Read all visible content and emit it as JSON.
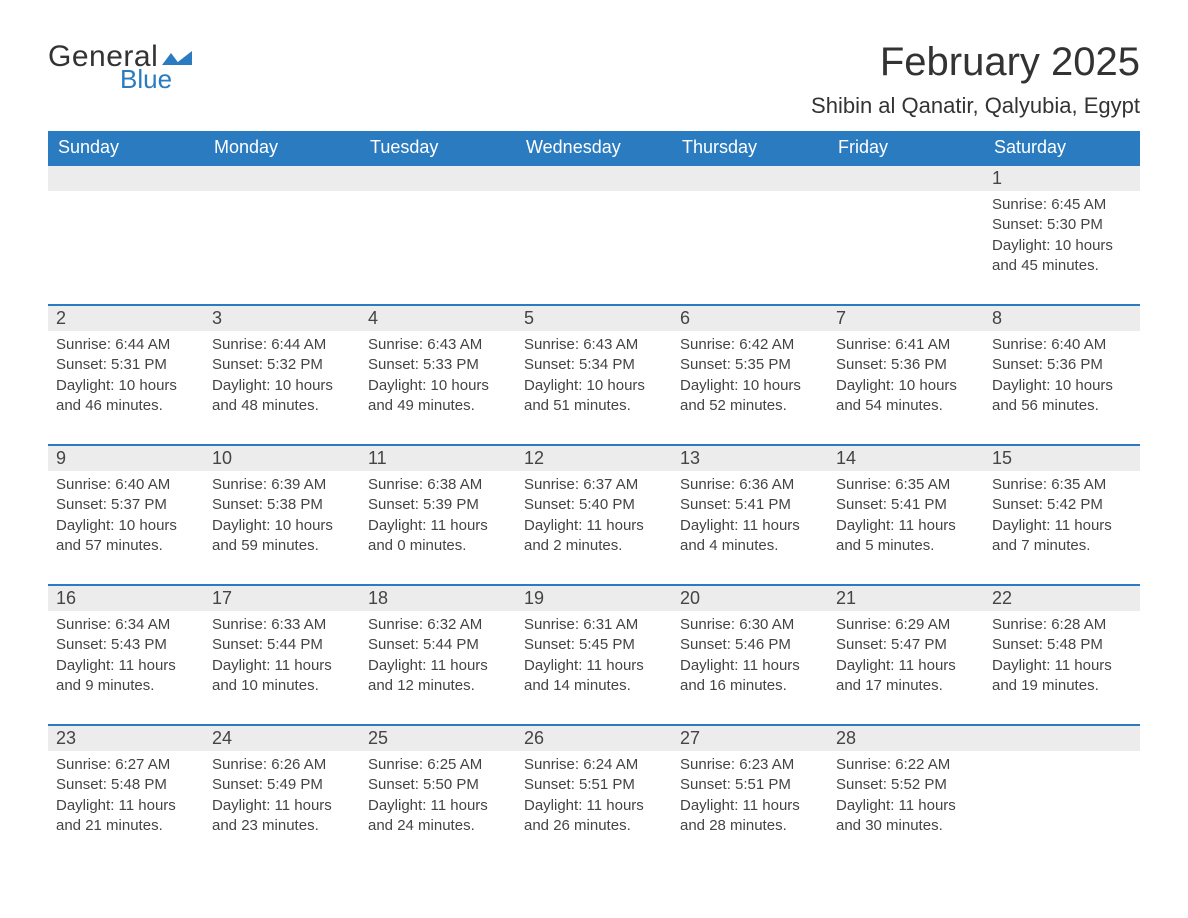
{
  "logo": {
    "text_general": "General",
    "text_blue": "Blue"
  },
  "title": "February 2025",
  "location": "Shibin al Qanatir, Qalyubia, Egypt",
  "colors": {
    "header_bg": "#2a7bbf",
    "header_text": "#ffffff",
    "row_stripe": "#ececec",
    "border_accent": "#2a7bbf",
    "text": "#444444",
    "background": "#ffffff"
  },
  "weekdays": [
    "Sunday",
    "Monday",
    "Tuesday",
    "Wednesday",
    "Thursday",
    "Friday",
    "Saturday"
  ],
  "weeks": [
    [
      null,
      null,
      null,
      null,
      null,
      null,
      {
        "n": "1",
        "sr": "6:45 AM",
        "ss": "5:30 PM",
        "dl": "10 hours and 45 minutes."
      }
    ],
    [
      {
        "n": "2",
        "sr": "6:44 AM",
        "ss": "5:31 PM",
        "dl": "10 hours and 46 minutes."
      },
      {
        "n": "3",
        "sr": "6:44 AM",
        "ss": "5:32 PM",
        "dl": "10 hours and 48 minutes."
      },
      {
        "n": "4",
        "sr": "6:43 AM",
        "ss": "5:33 PM",
        "dl": "10 hours and 49 minutes."
      },
      {
        "n": "5",
        "sr": "6:43 AM",
        "ss": "5:34 PM",
        "dl": "10 hours and 51 minutes."
      },
      {
        "n": "6",
        "sr": "6:42 AM",
        "ss": "5:35 PM",
        "dl": "10 hours and 52 minutes."
      },
      {
        "n": "7",
        "sr": "6:41 AM",
        "ss": "5:36 PM",
        "dl": "10 hours and 54 minutes."
      },
      {
        "n": "8",
        "sr": "6:40 AM",
        "ss": "5:36 PM",
        "dl": "10 hours and 56 minutes."
      }
    ],
    [
      {
        "n": "9",
        "sr": "6:40 AM",
        "ss": "5:37 PM",
        "dl": "10 hours and 57 minutes."
      },
      {
        "n": "10",
        "sr": "6:39 AM",
        "ss": "5:38 PM",
        "dl": "10 hours and 59 minutes."
      },
      {
        "n": "11",
        "sr": "6:38 AM",
        "ss": "5:39 PM",
        "dl": "11 hours and 0 minutes."
      },
      {
        "n": "12",
        "sr": "6:37 AM",
        "ss": "5:40 PM",
        "dl": "11 hours and 2 minutes."
      },
      {
        "n": "13",
        "sr": "6:36 AM",
        "ss": "5:41 PM",
        "dl": "11 hours and 4 minutes."
      },
      {
        "n": "14",
        "sr": "6:35 AM",
        "ss": "5:41 PM",
        "dl": "11 hours and 5 minutes."
      },
      {
        "n": "15",
        "sr": "6:35 AM",
        "ss": "5:42 PM",
        "dl": "11 hours and 7 minutes."
      }
    ],
    [
      {
        "n": "16",
        "sr": "6:34 AM",
        "ss": "5:43 PM",
        "dl": "11 hours and 9 minutes."
      },
      {
        "n": "17",
        "sr": "6:33 AM",
        "ss": "5:44 PM",
        "dl": "11 hours and 10 minutes."
      },
      {
        "n": "18",
        "sr": "6:32 AM",
        "ss": "5:44 PM",
        "dl": "11 hours and 12 minutes."
      },
      {
        "n": "19",
        "sr": "6:31 AM",
        "ss": "5:45 PM",
        "dl": "11 hours and 14 minutes."
      },
      {
        "n": "20",
        "sr": "6:30 AM",
        "ss": "5:46 PM",
        "dl": "11 hours and 16 minutes."
      },
      {
        "n": "21",
        "sr": "6:29 AM",
        "ss": "5:47 PM",
        "dl": "11 hours and 17 minutes."
      },
      {
        "n": "22",
        "sr": "6:28 AM",
        "ss": "5:48 PM",
        "dl": "11 hours and 19 minutes."
      }
    ],
    [
      {
        "n": "23",
        "sr": "6:27 AM",
        "ss": "5:48 PM",
        "dl": "11 hours and 21 minutes."
      },
      {
        "n": "24",
        "sr": "6:26 AM",
        "ss": "5:49 PM",
        "dl": "11 hours and 23 minutes."
      },
      {
        "n": "25",
        "sr": "6:25 AM",
        "ss": "5:50 PM",
        "dl": "11 hours and 24 minutes."
      },
      {
        "n": "26",
        "sr": "6:24 AM",
        "ss": "5:51 PM",
        "dl": "11 hours and 26 minutes."
      },
      {
        "n": "27",
        "sr": "6:23 AM",
        "ss": "5:51 PM",
        "dl": "11 hours and 28 minutes."
      },
      {
        "n": "28",
        "sr": "6:22 AM",
        "ss": "5:52 PM",
        "dl": "11 hours and 30 minutes."
      },
      null
    ]
  ],
  "labels": {
    "sunrise": "Sunrise: ",
    "sunset": "Sunset: ",
    "daylight": "Daylight: "
  }
}
